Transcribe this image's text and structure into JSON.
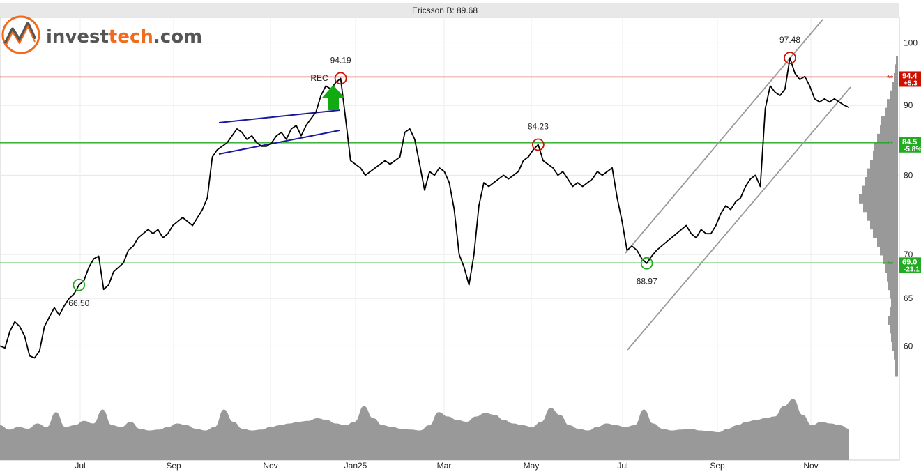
{
  "chart_data": {
    "type": "line",
    "title": "Ericsson B: 89.68",
    "last_price": 89.68,
    "brand": {
      "part1": "invest",
      "part2": "tech",
      "part3": ".com"
    },
    "x_ticks": [
      "Jul",
      "Sep",
      "Nov",
      "Jan25",
      "Mar",
      "May",
      "Jul",
      "Sep",
      "Nov"
    ],
    "y_ticks": [
      100,
      90,
      80,
      70,
      65,
      60
    ],
    "y_scale": "log",
    "ylim": [
      57,
      104
    ],
    "grid": true,
    "series": [
      {
        "values": [
          60.0,
          59.8,
          61.5,
          62.5,
          62.0,
          61.0,
          59.0,
          58.8,
          59.5,
          62.0,
          63.0,
          64.0,
          63.2,
          64.2,
          65.0,
          65.5,
          66.5,
          67.0,
          68.5,
          69.5,
          69.8,
          66.0,
          66.5,
          68.0,
          68.5,
          69.0,
          70.5,
          71.0,
          72.0,
          72.5,
          73.0,
          72.5,
          73.0,
          72.0,
          72.5,
          73.5,
          74.0,
          74.5,
          74.0,
          73.5,
          74.5,
          75.5,
          77.0,
          82.5,
          83.5,
          84.0,
          84.5,
          85.5,
          86.5,
          86.0,
          85.0,
          85.5,
          84.5,
          84.0,
          84.0,
          84.5,
          85.5,
          86.0,
          85.0,
          86.5,
          87.0,
          85.5,
          87.0,
          88.0,
          89.0,
          91.5,
          93.0,
          92.5,
          93.5,
          94.19,
          88.0,
          82.0,
          81.5,
          81.0,
          80.0,
          80.5,
          81.0,
          81.5,
          82.0,
          81.5,
          82.0,
          82.5,
          86.0,
          86.5,
          85.0,
          81.5,
          78.0,
          80.5,
          80.0,
          81.0,
          80.5,
          79.0,
          75.5,
          70.0,
          68.5,
          66.5,
          70.0,
          76.0,
          79.0,
          78.5,
          79.0,
          79.5,
          80.0,
          79.5,
          80.0,
          80.5,
          82.0,
          82.5,
          83.5,
          84.23,
          82.0,
          81.5,
          81.0,
          80.0,
          80.5,
          79.5,
          78.5,
          79.0,
          78.5,
          79.0,
          79.5,
          80.5,
          80.0,
          80.5,
          81.0,
          77.0,
          74.0,
          70.5,
          71.0,
          70.5,
          69.5,
          68.97,
          69.8,
          70.5,
          71.0,
          71.5,
          72.0,
          72.5,
          73.0,
          73.5,
          72.5,
          72.0,
          73.0,
          72.5,
          72.5,
          73.5,
          75.0,
          76.0,
          75.5,
          76.5,
          77.0,
          78.5,
          79.5,
          80.0,
          78.5,
          89.5,
          93.0,
          92.0,
          91.5,
          92.5,
          97.48,
          95.0,
          94.0,
          94.5,
          93.0,
          91.0,
          90.5,
          91.0,
          90.5,
          91.0,
          90.5,
          90.0,
          89.68
        ]
      }
    ],
    "annotations": [
      {
        "text": "94.19",
        "value": 94.19,
        "kind": "peak"
      },
      {
        "text": "84.23",
        "value": 84.23,
        "kind": "peak"
      },
      {
        "text": "97.48",
        "value": 97.48,
        "kind": "peak"
      },
      {
        "text": "66.50",
        "value": 66.5,
        "kind": "trough"
      },
      {
        "text": "68.97",
        "value": 68.97,
        "kind": "trough"
      },
      {
        "text": "REC",
        "kind": "signal"
      }
    ],
    "horizontal_levels": [
      {
        "value": 94.4,
        "label": "94.4",
        "sub": "+5.3",
        "color": "#cc1100"
      },
      {
        "value": 84.5,
        "label": "84.5",
        "sub": "-5.8%",
        "color": "#22aa22"
      },
      {
        "value": 69.0,
        "label": "69.0",
        "sub": "-23.1",
        "color": "#22aa22"
      }
    ],
    "volume": [
      40,
      35,
      38,
      36,
      42,
      38,
      55,
      38,
      40,
      45,
      42,
      58,
      40,
      38,
      44,
      36,
      34,
      35,
      38,
      42,
      40,
      36,
      34,
      38,
      58,
      44,
      36,
      34,
      35,
      38,
      40,
      42,
      44,
      45,
      48,
      46,
      42,
      40,
      44,
      62,
      48,
      40,
      38,
      36,
      35,
      34,
      40,
      55,
      50,
      46,
      44,
      50,
      54,
      52,
      46,
      42,
      40,
      38,
      44,
      60,
      52,
      40,
      36,
      34,
      38,
      42,
      40,
      38,
      40,
      58,
      42,
      36,
      34,
      35,
      36,
      34,
      33,
      32,
      36,
      40,
      44,
      46,
      48,
      50,
      62,
      70,
      52,
      40,
      44,
      42,
      40,
      36
    ],
    "volume_profile": [
      3,
      4,
      6,
      9,
      12,
      16,
      18,
      24,
      26,
      30,
      34,
      36,
      40,
      44,
      48,
      52,
      56,
      50,
      44,
      40,
      36,
      30,
      26,
      22,
      18,
      16,
      14,
      12,
      10,
      12,
      14,
      12,
      10,
      8,
      6,
      5,
      4
    ],
    "colors": {
      "price_line": "#000000",
      "resistance": "#cc1100",
      "support": "#22aa22",
      "channel": "#999999",
      "wedge": "#1a1aa0",
      "volume": "#999999",
      "signal_arrow": "#11aa11",
      "logo_orange": "#f26a1b",
      "logo_gray": "#555555"
    }
  }
}
